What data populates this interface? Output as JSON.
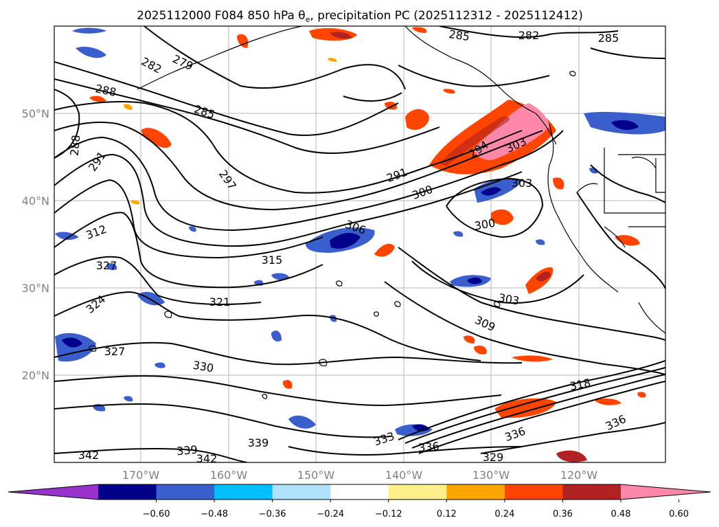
{
  "title": "2025112000 F084 850 hPa θ",
  "title_sub": "e",
  "title_rest": ", precipitation PC (2025112312 - 2025112412)",
  "lat_labels": [
    "50°N",
    "40°N",
    "30°N",
    "20°N"
  ],
  "lon_labels": [
    "170°W",
    "160°W",
    "150°W",
    "140°W",
    "130°W",
    "120°W"
  ],
  "contour_labels": [
    "285",
    "282",
    "285",
    "282",
    "279",
    "288",
    "285",
    "288",
    "291",
    "297",
    "291",
    "300",
    "294",
    "303",
    "303",
    "300",
    "312",
    "306",
    "315",
    "327",
    "321",
    "324",
    "303",
    "309",
    "327",
    "330",
    "318",
    "333",
    "336",
    "339",
    "336",
    "342",
    "339",
    "342",
    "329",
    "336"
  ],
  "colorbar": {
    "ticks": [
      "−0.60",
      "−0.48",
      "−0.36",
      "−0.24",
      "−0.12",
      "0.12",
      "0.24",
      "0.36",
      "0.48",
      "0.60"
    ],
    "colors": [
      "#9932cc",
      "#00008b",
      "#3a5fcd",
      "#00bfff",
      "#b0e2ff",
      "#ffffff",
      "#fff08c",
      "#ffa500",
      "#ff4500",
      "#b22222",
      "#ff88aa"
    ]
  }
}
